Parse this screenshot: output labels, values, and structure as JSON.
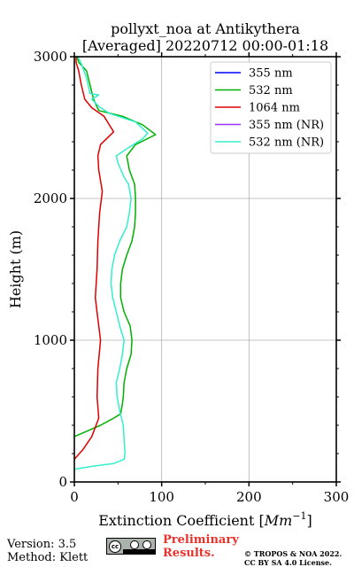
{
  "chart_data": {
    "type": "line",
    "title": "pollyxt_noa at Antikythera",
    "subtitle": "[Averaged] 20220712 00:00-01:18",
    "xlabel": "Extinction Coefficient [",
    "xlabel_unit": "Mm",
    "xlabel_exp": "−1",
    "xlabel_tail": "]",
    "ylabel": "Height (m)",
    "xlim": [
      0,
      300
    ],
    "ylim": [
      0,
      3000
    ],
    "xticks": [
      0,
      100,
      200,
      300
    ],
    "yticks": [
      0,
      1000,
      2000,
      3000
    ],
    "grid": true,
    "legend_position": "top-right",
    "series": [
      {
        "name": "355 nm",
        "color": "#0000ff",
        "points": []
      },
      {
        "name": "532 nm",
        "color": "#00b000",
        "points": [
          [
            0,
            320
          ],
          [
            15,
            360
          ],
          [
            30,
            400
          ],
          [
            45,
            450
          ],
          [
            53,
            480
          ],
          [
            55,
            550
          ],
          [
            56,
            600
          ],
          [
            57,
            700
          ],
          [
            60,
            800
          ],
          [
            65,
            900
          ],
          [
            66,
            1000
          ],
          [
            64,
            1100
          ],
          [
            57,
            1200
          ],
          [
            53,
            1300
          ],
          [
            53,
            1400
          ],
          [
            55,
            1500
          ],
          [
            60,
            1600
          ],
          [
            66,
            1700
          ],
          [
            69,
            1800
          ],
          [
            70,
            1900
          ],
          [
            70,
            2000
          ],
          [
            69,
            2100
          ],
          [
            63,
            2200
          ],
          [
            60,
            2300
          ],
          [
            70,
            2380
          ],
          [
            93,
            2450
          ],
          [
            78,
            2520
          ],
          [
            55,
            2580
          ],
          [
            28,
            2620
          ],
          [
            22,
            2700
          ],
          [
            18,
            2800
          ],
          [
            14,
            2900
          ],
          [
            5,
            2960
          ],
          [
            3,
            3000
          ]
        ]
      },
      {
        "name": "1064 nm",
        "color": "#e00000",
        "points": [
          [
            0,
            160
          ],
          [
            10,
            230
          ],
          [
            20,
            320
          ],
          [
            28,
            450
          ],
          [
            26,
            600
          ],
          [
            27,
            800
          ],
          [
            30,
            1000
          ],
          [
            27,
            1150
          ],
          [
            24,
            1300
          ],
          [
            26,
            1500
          ],
          [
            27,
            1700
          ],
          [
            29,
            1900
          ],
          [
            32,
            2050
          ],
          [
            28,
            2200
          ],
          [
            27,
            2300
          ],
          [
            30,
            2380
          ],
          [
            45,
            2470
          ],
          [
            38,
            2540
          ],
          [
            34,
            2580
          ],
          [
            20,
            2640
          ],
          [
            12,
            2700
          ],
          [
            8,
            2800
          ],
          [
            5,
            2900
          ],
          [
            2,
            2960
          ],
          [
            2,
            3000
          ]
        ]
      },
      {
        "name": "355 nm (NR)",
        "color": "#9b30ff",
        "points": []
      },
      {
        "name": "532 nm (NR)",
        "color": "#33eecc",
        "points": [
          [
            0,
            90
          ],
          [
            20,
            110
          ],
          [
            45,
            130
          ],
          [
            57,
            160
          ],
          [
            58,
            200
          ],
          [
            57,
            300
          ],
          [
            56,
            400
          ],
          [
            52,
            500
          ],
          [
            49,
            600
          ],
          [
            48,
            700
          ],
          [
            52,
            800
          ],
          [
            55,
            900
          ],
          [
            57,
            1000
          ],
          [
            52,
            1100
          ],
          [
            48,
            1200
          ],
          [
            44,
            1300
          ],
          [
            42,
            1400
          ],
          [
            43,
            1500
          ],
          [
            46,
            1600
          ],
          [
            52,
            1700
          ],
          [
            60,
            1800
          ],
          [
            63,
            1900
          ],
          [
            65,
            2000
          ],
          [
            62,
            2100
          ],
          [
            57,
            2150
          ],
          [
            50,
            2250
          ],
          [
            48,
            2300
          ],
          [
            60,
            2350
          ],
          [
            78,
            2420
          ],
          [
            84,
            2460
          ],
          [
            70,
            2540
          ],
          [
            50,
            2580
          ],
          [
            40,
            2600
          ],
          [
            28,
            2650
          ],
          [
            20,
            2700
          ],
          [
            28,
            2730
          ],
          [
            18,
            2740
          ],
          [
            14,
            2850
          ],
          [
            8,
            2950
          ],
          [
            4,
            3000
          ]
        ]
      }
    ]
  },
  "footer": {
    "version": "Version: 3.5",
    "method": "Method: Klett",
    "license_badge": "cc-by-sa-icon",
    "preliminary_line1": "Preliminary",
    "preliminary_line2": "Results.",
    "copyright_line1": "© TROPOS & NOA 2022.",
    "copyright_line2": "CC BY SA 4.0 License."
  }
}
